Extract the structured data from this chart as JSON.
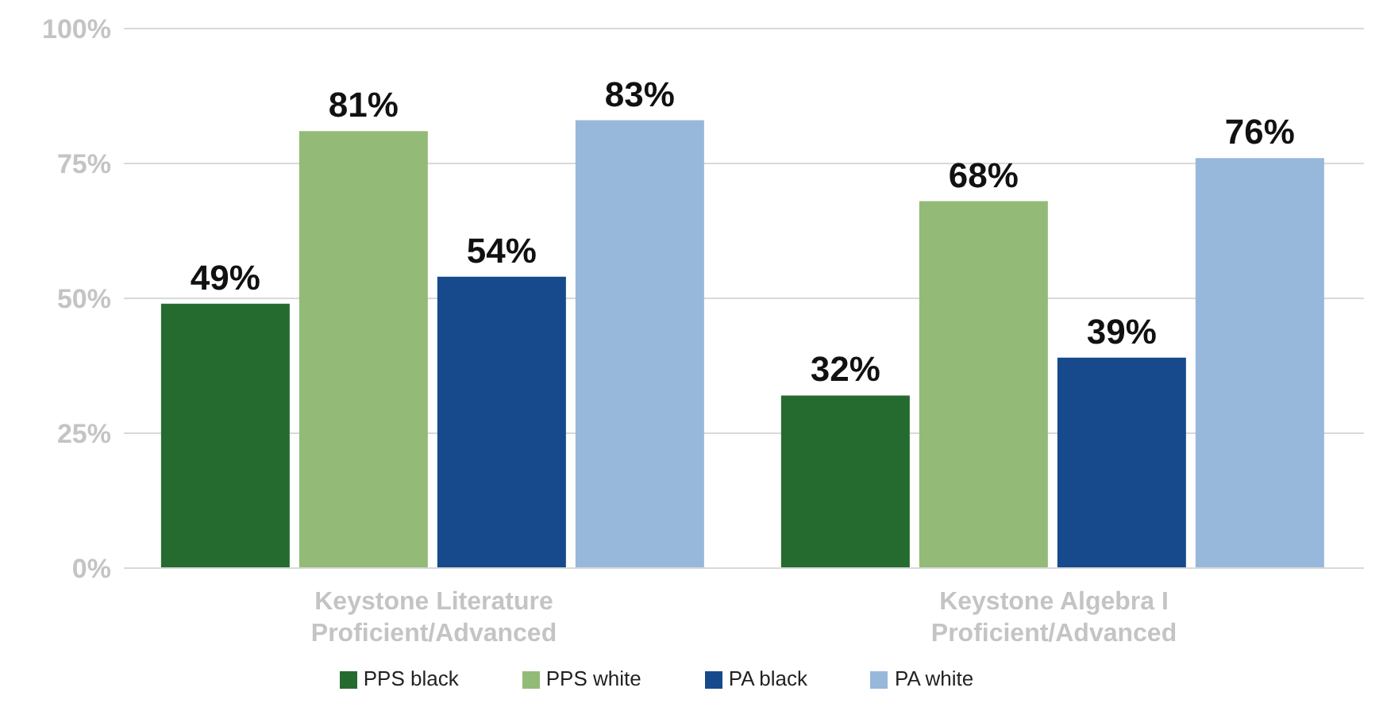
{
  "chart_data": {
    "type": "bar",
    "categories": [
      "Keystone Literature\nProficient/Advanced",
      "Keystone Algebra I\nProficient/Advanced"
    ],
    "series": [
      {
        "name": "PPS black",
        "color": "#256b2f",
        "values": [
          49,
          32
        ],
        "value_labels": [
          "49%",
          "32%"
        ]
      },
      {
        "name": "PPS white",
        "color": "#93bb77",
        "values": [
          81,
          68
        ],
        "value_labels": [
          "81%",
          "68%"
        ]
      },
      {
        "name": "PA black",
        "color": "#164a8c",
        "values": [
          54,
          39
        ],
        "value_labels": [
          "54%",
          "39%"
        ]
      },
      {
        "name": "PA white",
        "color": "#97b8db",
        "values": [
          83,
          76
        ],
        "value_labels": [
          "83%",
          "76%"
        ]
      }
    ],
    "ylim": [
      0,
      100
    ],
    "yticks": [
      {
        "value": 0,
        "label": "0%"
      },
      {
        "value": 25,
        "label": "25%"
      },
      {
        "value": 50,
        "label": "50%"
      },
      {
        "value": 75,
        "label": "75%"
      },
      {
        "value": 100,
        "label": "100%"
      }
    ],
    "grid": "y",
    "legend": "bottom"
  }
}
